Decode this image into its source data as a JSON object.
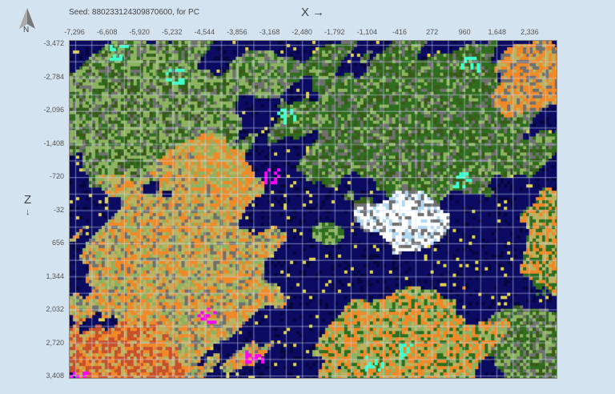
{
  "header": {
    "seed_text": "Seed: 880233124309870600, for PC",
    "north_label": "N",
    "x_axis_title": "X →",
    "z_axis_title": "Z",
    "z_axis_arrow": "↓"
  },
  "x_ticks": [
    "-7,296",
    "-6,608",
    "-5,920",
    "-5,232",
    "-4,544",
    "-3,856",
    "-3,168",
    "-2,480",
    "-1,792",
    "-1,104",
    "-416",
    "272",
    "960",
    "1,648",
    "2,336"
  ],
  "z_ticks": [
    "-3,472",
    "-2,784",
    "-2,096",
    "-1,408",
    "-720",
    "-32",
    "656",
    "1,344",
    "2,032",
    "2,720",
    "3,408"
  ],
  "biome_colors": {
    "ocean": "#0b0b62",
    "deep_ocean": "#06063c",
    "forest": "#2f6e1e",
    "plains": "#8db360",
    "mountains": "#707070",
    "savanna": "#bdb25f",
    "mesa": "#f08a28",
    "mesa_red": "#c8502a",
    "snow": "#ffffff",
    "ice_spikes": "#b0d8f0",
    "mushroom": "#ff00ff",
    "jungle": "#40ffcc",
    "dark_forest": "#3a5a1a",
    "islands": "#e0d050"
  }
}
